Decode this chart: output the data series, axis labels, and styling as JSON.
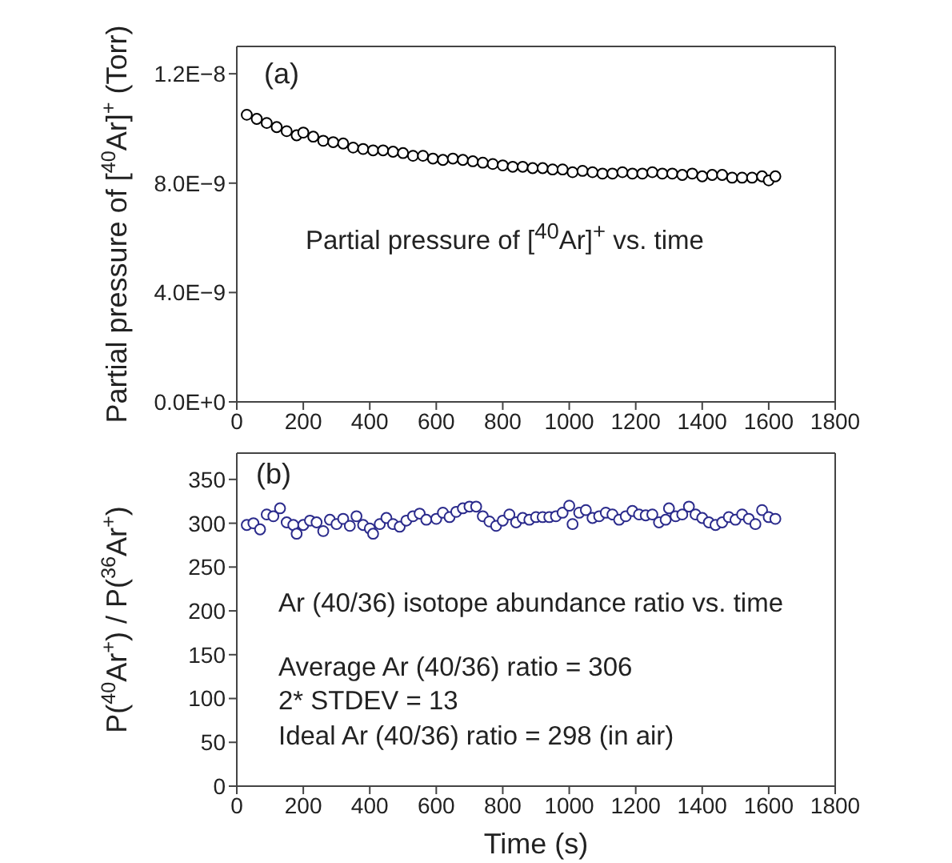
{
  "chart_data": [
    {
      "type": "scatter",
      "ylabel": "Partial pressure of [$^{40}$Ar]$^{+}$ (Torr)",
      "annotations": [
        "(a)",
        "Partial pressure of [$^{40}$Ar]$^{+}$ vs. time"
      ],
      "marker": "circle",
      "color": "#000000",
      "x": [
        30,
        60,
        90,
        120,
        150,
        180,
        200,
        230,
        260,
        290,
        320,
        350,
        380,
        410,
        440,
        470,
        500,
        530,
        560,
        590,
        620,
        650,
        680,
        710,
        740,
        770,
        800,
        830,
        860,
        890,
        920,
        950,
        980,
        1010,
        1040,
        1070,
        1100,
        1130,
        1160,
        1190,
        1220,
        1250,
        1280,
        1310,
        1340,
        1370,
        1400,
        1430,
        1460,
        1490,
        1520,
        1550,
        1580,
        1600,
        1620
      ],
      "values": [
        1.05e-08,
        1.035e-08,
        1.02e-08,
        1.005e-08,
        9.9e-09,
        9.75e-09,
        9.85e-09,
        9.7e-09,
        9.55e-09,
        9.5e-09,
        9.45e-09,
        9.3e-09,
        9.25e-09,
        9.2e-09,
        9.2e-09,
        9.15e-09,
        9.1e-09,
        9e-09,
        9e-09,
        8.9e-09,
        8.85e-09,
        8.9e-09,
        8.85e-09,
        8.8e-09,
        8.75e-09,
        8.7e-09,
        8.65e-09,
        8.6e-09,
        8.6e-09,
        8.55e-09,
        8.55e-09,
        8.5e-09,
        8.5e-09,
        8.4e-09,
        8.45e-09,
        8.4e-09,
        8.35e-09,
        8.35e-09,
        8.4e-09,
        8.35e-09,
        8.35e-09,
        8.4e-09,
        8.35e-09,
        8.35e-09,
        8.3e-09,
        8.35e-09,
        8.25e-09,
        8.3e-09,
        8.3e-09,
        8.2e-09,
        8.2e-09,
        8.2e-09,
        8.25e-09,
        8.1e-09,
        8.25e-09
      ],
      "xlim": [
        0,
        1800
      ],
      "xticks": [
        0,
        200,
        400,
        600,
        800,
        1000,
        1200,
        1400,
        1600,
        1800
      ],
      "ylim": [
        0,
        1.3e-08
      ],
      "yticks": [
        {
          "value": 0,
          "label": "0.0E+0"
        },
        {
          "value": 4e-09,
          "label": "4.0E−9"
        },
        {
          "value": 8e-09,
          "label": "8.0E−9"
        },
        {
          "value": 1.2e-08,
          "label": "1.2E−8"
        }
      ]
    },
    {
      "type": "scatter",
      "xlabel": "Time (s)",
      "ylabel": "P($^{40}$Ar$^{+}$) / P($^{36}$Ar$^{+}$)",
      "annotations": [
        "(b)",
        "Ar (40/36) isotope abundance ratio vs. time",
        "Average Ar (40/36) ratio = 306",
        "2* STDEV = 13",
        "Ideal Ar (40/36) ratio = 298 (in air)"
      ],
      "marker": "circle",
      "color": "#2b2b8c",
      "x": [
        30,
        50,
        70,
        90,
        110,
        130,
        150,
        170,
        180,
        200,
        220,
        240,
        260,
        280,
        300,
        320,
        340,
        360,
        380,
        400,
        410,
        430,
        450,
        470,
        490,
        510,
        530,
        550,
        570,
        600,
        620,
        640,
        660,
        680,
        700,
        720,
        740,
        760,
        780,
        800,
        820,
        840,
        860,
        880,
        900,
        920,
        940,
        960,
        980,
        1000,
        1010,
        1030,
        1050,
        1070,
        1090,
        1110,
        1130,
        1150,
        1170,
        1190,
        1210,
        1230,
        1250,
        1270,
        1290,
        1300,
        1320,
        1340,
        1360,
        1380,
        1400,
        1420,
        1440,
        1460,
        1480,
        1500,
        1520,
        1540,
        1560,
        1580,
        1600,
        1620
      ],
      "values": [
        298,
        300,
        293,
        310,
        308,
        317,
        301,
        298,
        288,
        298,
        303,
        301,
        291,
        304,
        299,
        305,
        297,
        308,
        298,
        294,
        288,
        299,
        306,
        299,
        296,
        303,
        308,
        311,
        304,
        305,
        312,
        307,
        313,
        317,
        319,
        319,
        308,
        302,
        297,
        303,
        310,
        301,
        306,
        304,
        307,
        307,
        307,
        308,
        312,
        320,
        299,
        312,
        315,
        306,
        308,
        312,
        310,
        304,
        308,
        314,
        310,
        309,
        310,
        301,
        304,
        317,
        308,
        310,
        319,
        310,
        306,
        301,
        298,
        301,
        307,
        304,
        310,
        305,
        299,
        315,
        307,
        305
      ],
      "xlim": [
        0,
        1800
      ],
      "xticks": [
        0,
        200,
        400,
        600,
        800,
        1000,
        1200,
        1400,
        1600,
        1800
      ],
      "ylim": [
        0,
        380
      ],
      "yticks": [
        0,
        50,
        100,
        150,
        200,
        250,
        300,
        350
      ]
    }
  ]
}
